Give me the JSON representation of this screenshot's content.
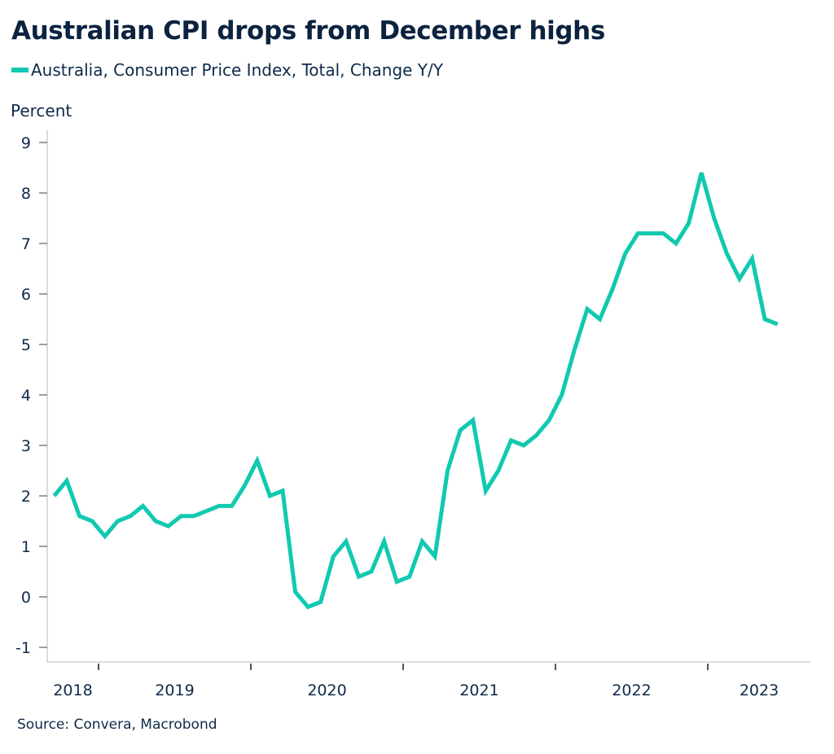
{
  "chart_data": {
    "type": "line",
    "title": "Australian CPI drops from December highs",
    "ylabel": "Percent",
    "xlabel": "",
    "source": "Source: Convera, Macrobond",
    "ylim": [
      -1,
      9
    ],
    "yticks": [
      -1,
      0,
      1,
      2,
      3,
      4,
      5,
      6,
      7,
      8,
      9
    ],
    "xlim_months": [
      "2018-08",
      "2023-07"
    ],
    "xtick_labels": [
      "2018",
      "2019",
      "2020",
      "2021",
      "2022",
      "2023"
    ],
    "grid": false,
    "legend_position": "top-left",
    "series": [
      {
        "name": "Australia, Consumer Price Index, Total, Change Y/Y",
        "color": "#10c9b0",
        "start_month": "2018-09",
        "frequency": "monthly",
        "values": [
          2.0,
          2.3,
          1.6,
          1.5,
          1.2,
          1.5,
          1.6,
          1.8,
          1.5,
          1.4,
          1.6,
          1.6,
          1.7,
          1.8,
          1.8,
          2.2,
          2.7,
          2.0,
          2.1,
          0.1,
          -0.2,
          -0.1,
          0.8,
          1.1,
          0.4,
          0.5,
          1.1,
          0.3,
          0.4,
          1.1,
          0.8,
          2.5,
          3.3,
          3.5,
          2.1,
          2.5,
          3.1,
          3.0,
          3.2,
          3.5,
          4.0,
          4.9,
          5.7,
          5.5,
          6.1,
          6.8,
          7.2,
          7.2,
          7.2,
          7.0,
          7.4,
          8.4,
          7.5,
          6.8,
          6.3,
          6.7,
          5.5,
          5.4
        ]
      }
    ]
  }
}
